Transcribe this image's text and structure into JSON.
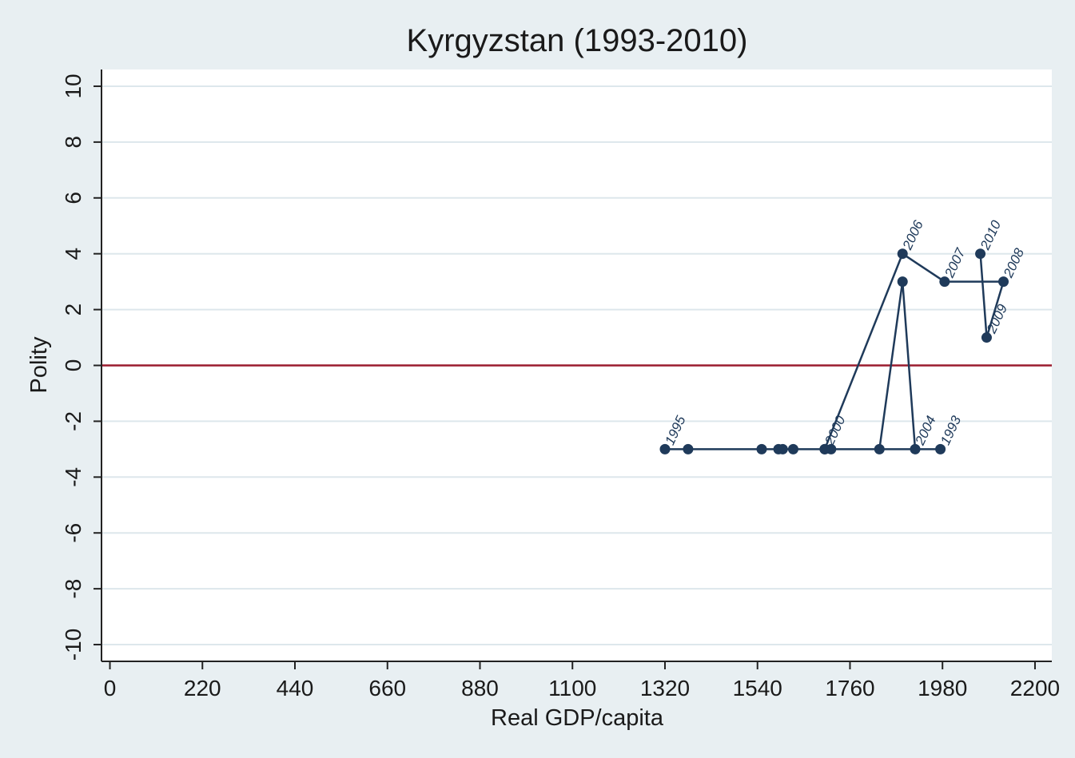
{
  "chart_data": {
    "type": "scatter",
    "title": "Kyrgyzstan (1993-2010)",
    "xlabel": "Real GDP/capita",
    "ylabel": "Polity",
    "xlim": [
      -20,
      2240
    ],
    "ylim": [
      -10.6,
      10.6
    ],
    "xticks": [
      "0",
      "220",
      "440",
      "660",
      "880",
      "1100",
      "1320",
      "1540",
      "1760",
      "1980",
      "2200"
    ],
    "yticks": [
      "10",
      "8",
      "6",
      "4",
      "2",
      "0",
      "-2",
      "-4",
      "-6",
      "-8",
      "-10"
    ],
    "xtick_values": [
      0,
      220,
      440,
      660,
      880,
      1100,
      1320,
      1540,
      1760,
      1980,
      2200
    ],
    "ytick_values": [
      10,
      8,
      6,
      4,
      2,
      0,
      -2,
      -4,
      -6,
      -8,
      -10
    ],
    "grid": true,
    "reference_line": {
      "y": 0,
      "color": "#9b1c2e"
    },
    "colors": {
      "series": "#1f3a5a",
      "background": "#e8eff2",
      "plot": "#ffffff",
      "grid": "#dde7ec"
    },
    "series": [
      {
        "points": [
          {
            "label": "1993",
            "x": 1975,
            "y": -3
          },
          {
            "label": "",
            "x": 1375,
            "y": -3
          },
          {
            "label": "1995",
            "x": 1320,
            "y": -3
          },
          {
            "label": "",
            "x": 1550,
            "y": -3
          },
          {
            "label": "",
            "x": 1590,
            "y": -3
          },
          {
            "label": "",
            "x": 1600,
            "y": -3
          },
          {
            "label": "",
            "x": 1625,
            "y": -3
          },
          {
            "label": "2000",
            "x": 1700,
            "y": -3
          },
          {
            "label": "",
            "x": 1715,
            "y": -3
          },
          {
            "label": "",
            "x": 1830,
            "y": -3
          },
          {
            "label": "",
            "x": 1885,
            "y": 3
          },
          {
            "label": "2004",
            "x": 1915,
            "y": -3
          },
          {
            "label": "",
            "x": 1700,
            "y": -3
          },
          {
            "label": "2006",
            "x": 1885,
            "y": 4
          },
          {
            "label": "2007",
            "x": 1985,
            "y": 3
          },
          {
            "label": "2008",
            "x": 2125,
            "y": 3
          },
          {
            "label": "2009",
            "x": 2085,
            "y": 1
          },
          {
            "label": "2010",
            "x": 2070,
            "y": 4
          }
        ]
      }
    ]
  }
}
